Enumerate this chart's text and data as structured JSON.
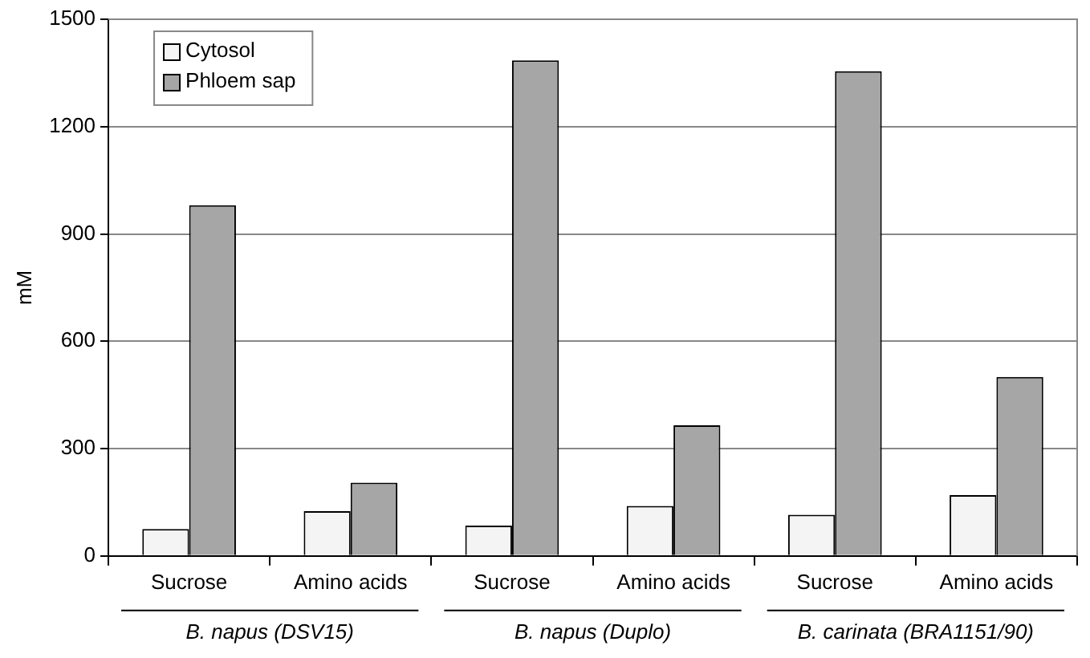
{
  "chart_data": {
    "type": "bar",
    "ylabel": "mM",
    "categories": [
      "Sucrose",
      "Amino acids",
      "Sucrose",
      "Amino acids",
      "Sucrose",
      "Amino acids"
    ],
    "series": [
      {
        "name": "Cytosol",
        "color": "#f4f4f4",
        "values": [
          75,
          125,
          85,
          140,
          115,
          170
        ]
      },
      {
        "name": "Phloem sap",
        "color": "#a6a6a6",
        "values": [
          980,
          205,
          1385,
          365,
          1355,
          500
        ]
      }
    ],
    "ylim": [
      0,
      1500
    ],
    "yticks": [
      0,
      300,
      600,
      900,
      1200,
      1500
    ],
    "grid": "y",
    "legend": "top left",
    "annotations": [
      "B. napus (DSV15)",
      "B. napus (Duplo)",
      "B. carinata (BRA1151/90)"
    ]
  }
}
